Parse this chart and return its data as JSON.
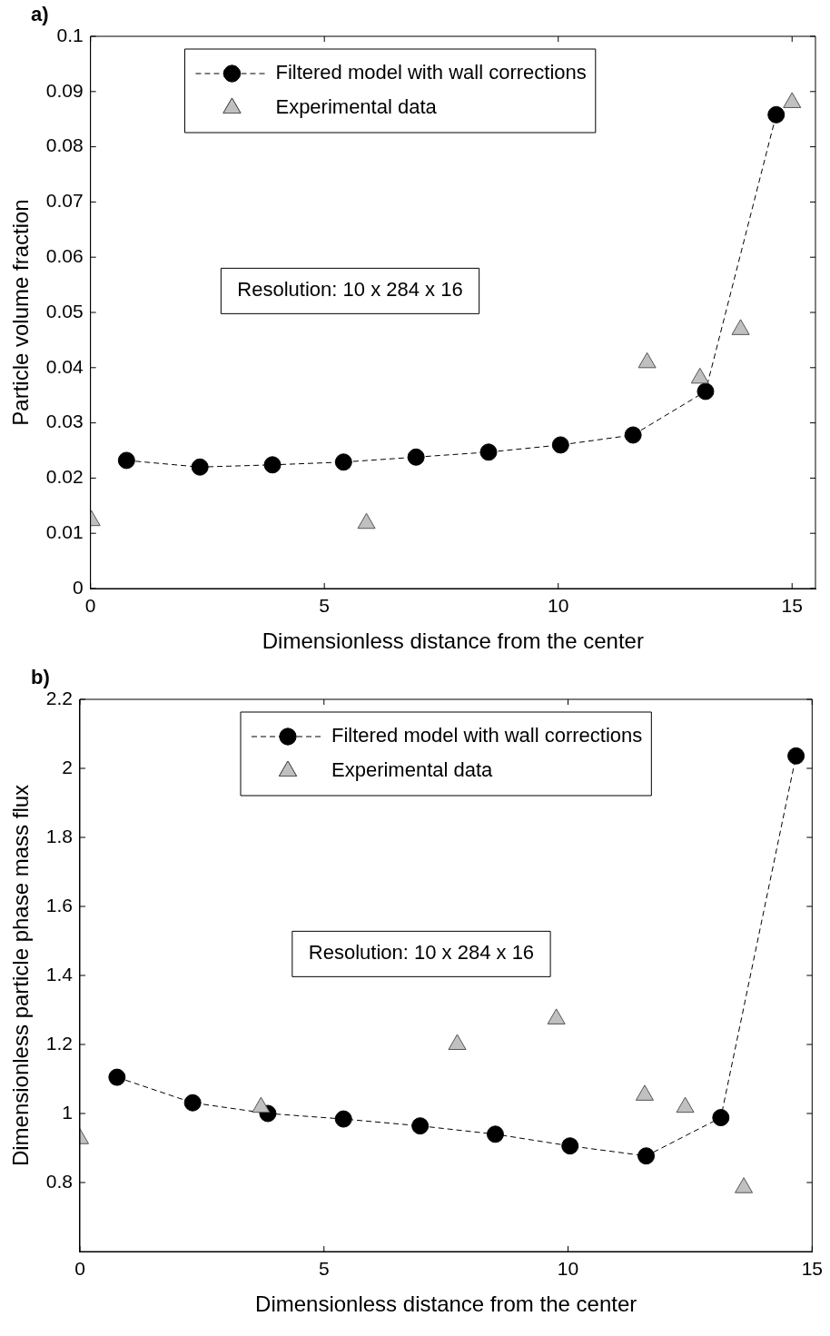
{
  "chart_data": [
    {
      "type": "line",
      "title": "a)",
      "xlabel": "Dimensionless distance from the center",
      "ylabel": "Particle volume fraction",
      "annotations": [
        "Resolution: 10 x 284 x 16"
      ],
      "xlim": [
        0,
        15.5
      ],
      "xticks": [
        0,
        5,
        10,
        15
      ],
      "ylim": [
        0,
        0.1
      ],
      "yticks": [
        0,
        0.01,
        0.02,
        0.03,
        0.04,
        0.05,
        0.06,
        0.07,
        0.08,
        0.09,
        0.1
      ],
      "grid": false,
      "legend": "top left",
      "series": [
        {
          "name": "Filtered model with wall corrections",
          "type": "line",
          "marker": "circle",
          "line_style": "dashed",
          "color": "#000000",
          "x": [
            0.77,
            2.34,
            3.89,
            5.41,
            6.96,
            8.51,
            10.05,
            11.6,
            13.15,
            14.66
          ],
          "values": [
            0.0232,
            0.022,
            0.0224,
            0.0229,
            0.0238,
            0.0247,
            0.026,
            0.0278,
            0.0357,
            0.0858
          ]
        },
        {
          "name": "Experimental data",
          "type": "scatter",
          "marker": "triangle",
          "color": "#c0c0c0",
          "x": [
            0.02,
            5.9,
            11.9,
            13.03,
            13.9,
            15.0
          ],
          "values": [
            0.0123,
            0.0118,
            0.0409,
            0.0381,
            0.0469,
            0.088
          ]
        }
      ]
    },
    {
      "type": "line",
      "title": "b)",
      "xlabel": "Dimensionless distance from the center",
      "ylabel": "Dimensionless particle phase mass flux",
      "annotations": [
        "Resolution: 10 x 284 x 16"
      ],
      "xlim": [
        0,
        15
      ],
      "xticks": [
        0,
        5,
        10,
        15
      ],
      "ylim": [
        0.6,
        2.2
      ],
      "yticks": [
        0.8,
        1,
        1.2,
        1.4,
        1.6,
        1.8,
        2,
        2.2
      ],
      "grid": false,
      "legend": "top",
      "series": [
        {
          "name": "Filtered model with wall corrections",
          "type": "line",
          "marker": "circle",
          "line_style": "dashed",
          "color": "#000000",
          "x": [
            0.76,
            2.31,
            3.85,
            5.4,
            6.97,
            8.51,
            10.04,
            11.6,
            13.13,
            14.67
          ],
          "values": [
            1.105,
            1.031,
            1.0,
            0.984,
            0.964,
            0.94,
            0.906,
            0.877,
            0.988,
            2.036
          ]
        },
        {
          "name": "Experimental data",
          "type": "scatter",
          "marker": "triangle",
          "color": "#c0c0c0",
          "x": [
            0,
            3.71,
            7.73,
            9.76,
            11.57,
            12.4,
            13.6
          ],
          "values": [
            0.927,
            1.018,
            1.2,
            1.274,
            1.053,
            1.018,
            0.785
          ]
        }
      ]
    }
  ]
}
